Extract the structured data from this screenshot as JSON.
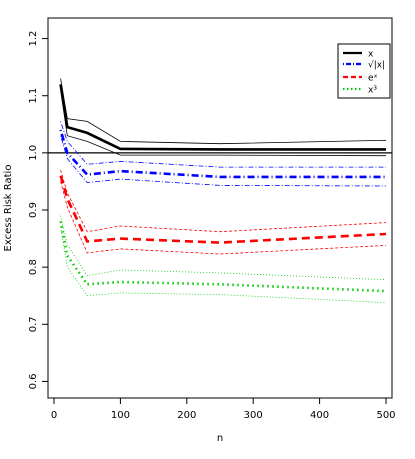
{
  "chart_data": {
    "type": "line",
    "title": "",
    "xlabel": "n",
    "ylabel": "Excess Risk Ratio",
    "xlim": [
      0,
      500
    ],
    "ylim": [
      0.6,
      1.2
    ],
    "x_ticks": [
      0,
      100,
      200,
      300,
      400,
      500
    ],
    "x_tick_labels": [
      "0",
      "100",
      "200",
      "300",
      "400",
      "500"
    ],
    "y_ticks": [
      0.6,
      0.7,
      0.8,
      0.9,
      1.0,
      1.1,
      1.2
    ],
    "y_tick_labels": [
      "0.6",
      "0.7",
      "0.8",
      "0.9",
      "1.0",
      "1.1",
      "1.2"
    ],
    "reference_line": 1.0,
    "legend": {
      "position": "top-right",
      "entries": [
        {
          "label": "x",
          "color": "#000000",
          "dash": "solid"
        },
        {
          "label": "√|x|",
          "color": "#0000ff",
          "dash": "dotdash"
        },
        {
          "label": "eˣ",
          "color": "#ff0000",
          "dash": "dashed"
        },
        {
          "label": "x³",
          "color": "#00cc00",
          "dash": "dotted"
        }
      ]
    },
    "x": [
      10,
      20,
      50,
      100,
      250,
      500
    ],
    "series": [
      {
        "name": "x",
        "color": "#000000",
        "dash": "solid",
        "values": [
          1.12,
          1.045,
          1.035,
          1.007,
          1.006,
          1.006
        ],
        "upper": [
          1.13,
          1.06,
          1.055,
          1.02,
          1.016,
          1.022
        ],
        "lower": [
          1.11,
          1.03,
          1.02,
          0.996,
          0.996,
          0.995
        ]
      },
      {
        "name": "√|x|",
        "color": "#0000ff",
        "dash": "dotdash",
        "values": [
          1.04,
          1.0,
          0.962,
          0.968,
          0.958,
          0.958
        ],
        "upper": [
          1.055,
          1.02,
          0.98,
          0.985,
          0.975,
          0.975
        ],
        "lower": [
          1.03,
          0.99,
          0.948,
          0.954,
          0.943,
          0.942
        ]
      },
      {
        "name": "eˣ",
        "color": "#ff0000",
        "dash": "dashed",
        "values": [
          0.96,
          0.92,
          0.845,
          0.85,
          0.843,
          0.858
        ],
        "upper": [
          0.97,
          0.93,
          0.862,
          0.872,
          0.862,
          0.878
        ],
        "lower": [
          0.95,
          0.905,
          0.825,
          0.832,
          0.823,
          0.838
        ]
      },
      {
        "name": "x³",
        "color": "#00cc00",
        "dash": "dotted",
        "values": [
          0.88,
          0.82,
          0.77,
          0.774,
          0.77,
          0.758
        ],
        "upper": [
          0.89,
          0.84,
          0.785,
          0.795,
          0.79,
          0.778
        ],
        "lower": [
          0.87,
          0.8,
          0.75,
          0.755,
          0.752,
          0.738
        ]
      }
    ]
  }
}
